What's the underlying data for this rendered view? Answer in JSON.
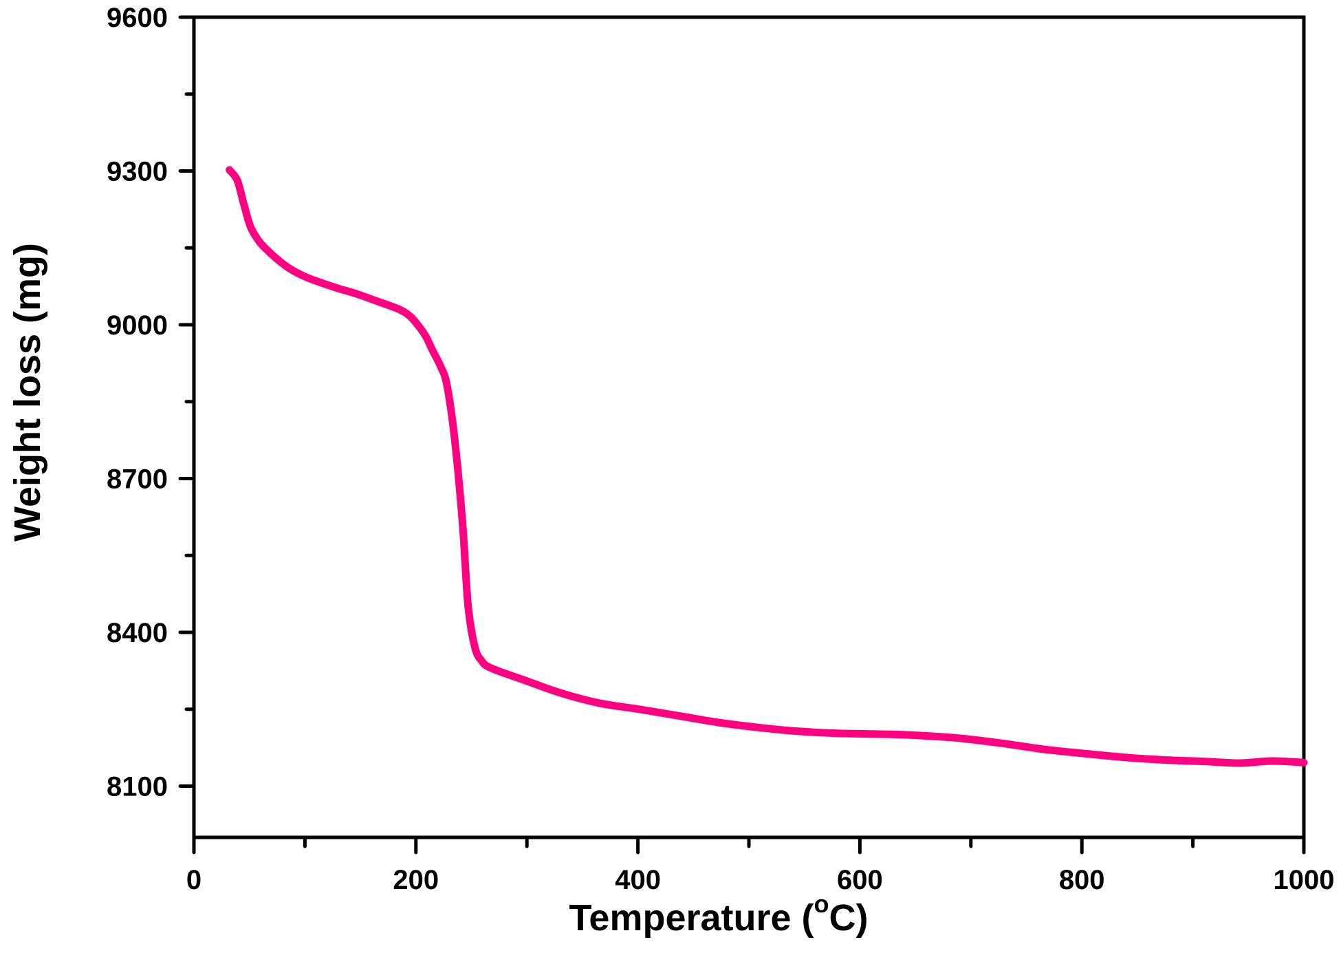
{
  "chart_data": {
    "type": "line",
    "title": "",
    "xlabel": "Temperature (°C)",
    "xlabel_main": "Temperature (",
    "xlabel_sup": "o",
    "xlabel_tail": "C)",
    "ylabel": "Weight loss (mg)",
    "xlim": [
      0,
      1000
    ],
    "ylim": [
      8000,
      9600
    ],
    "x_major_ticks": [
      0,
      200,
      400,
      600,
      800,
      1000
    ],
    "x_minor_ticks": [
      100,
      300,
      500,
      700,
      900
    ],
    "y_major_ticks": [
      8100,
      8400,
      8700,
      9000,
      9300,
      9600
    ],
    "y_minor_ticks": [
      8250,
      8550,
      8850,
      9150,
      9450
    ],
    "grid": false,
    "legend": null,
    "series": [
      {
        "name": "Weight loss",
        "color": "#FF0080",
        "x": [
          32,
          39,
          45,
          51,
          58,
          64,
          75,
          86,
          100,
          116,
          130,
          147,
          165,
          185,
          195,
          203,
          209,
          215,
          222,
          228,
          235,
          242,
          247,
          253,
          259,
          268,
          300,
          330,
          365,
          401,
          440,
          473,
          510,
          544,
          580,
          629,
          660,
          692,
          730,
          765,
          800,
          839,
          875,
          912,
          942,
          971,
          1000
        ],
        "y": [
          9302,
          9282,
          9235,
          9191,
          9165,
          9150,
          9128,
          9110,
          9094,
          9081,
          9071,
          9060,
          9046,
          9030,
          9016,
          8996,
          8977,
          8950,
          8920,
          8882,
          8775,
          8613,
          8452,
          8372,
          8345,
          8330,
          8305,
          8282,
          8262,
          8250,
          8236,
          8224,
          8214,
          8207,
          8203,
          8201,
          8198,
          8193,
          8183,
          8172,
          8164,
          8156,
          8151,
          8148,
          8145,
          8149,
          8146
        ]
      }
    ]
  }
}
